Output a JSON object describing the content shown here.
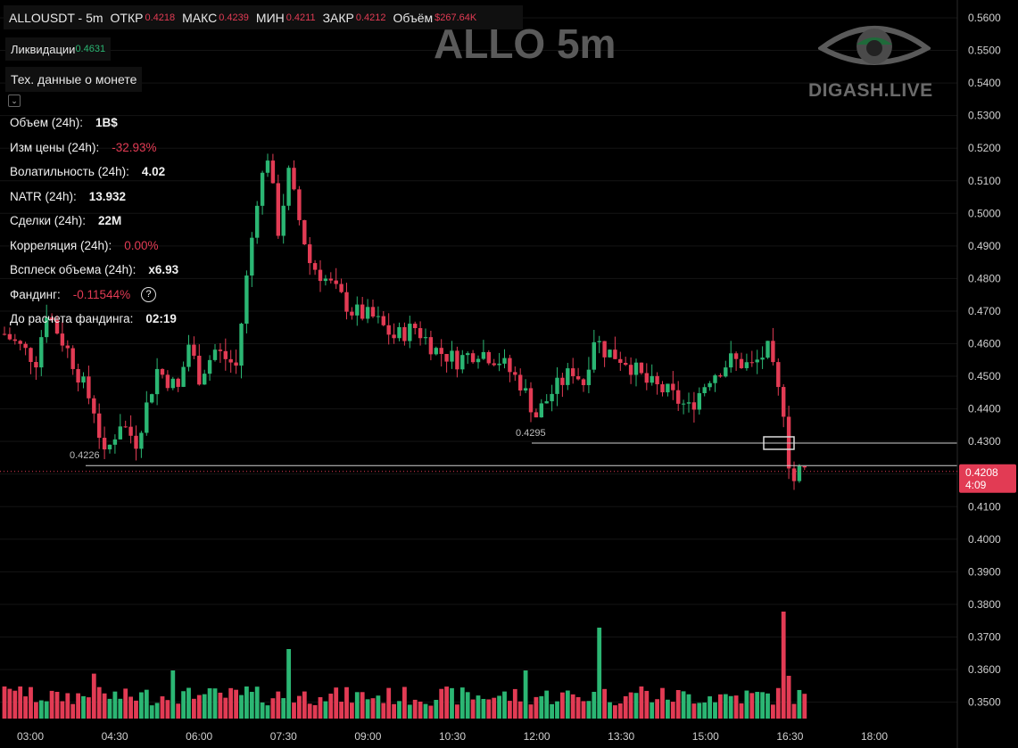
{
  "header": {
    "symbol": "ALLOUSDT - 5m",
    "open_label": "ОТКР",
    "open": "0.4218",
    "high_label": "МАКС",
    "high": "0.4239",
    "low_label": "МИН",
    "low": "0.4211",
    "close_label": "ЗАКР",
    "close": "0.4212",
    "volume_label": "Объём",
    "volume": "$267.64K"
  },
  "liquidations": {
    "label": "Ликвидации",
    "value": "0.4631"
  },
  "coin_data_button": "Тех. данные о монете",
  "stats": [
    {
      "label": "Объем (24h):",
      "value": "1B$",
      "color": "#f0f0f0"
    },
    {
      "label": "Изм цены  (24h):",
      "value": "-32.93%",
      "color": "#e23b54"
    },
    {
      "label": "Волатильность  (24h):",
      "value": "4.02",
      "color": "#f0f0f0"
    },
    {
      "label": "NATR (24h):",
      "value": "13.932",
      "color": "#f0f0f0"
    },
    {
      "label": "Сделки (24h):",
      "value": "22M",
      "color": "#f0f0f0"
    },
    {
      "label": "Корреляция (24h):",
      "value": "0.00%",
      "color": "#e23b54"
    },
    {
      "label": "Всплеск объема (24h):",
      "value": "x6.93",
      "color": "#f0f0f0"
    },
    {
      "label": "Фандинг:",
      "value": "-0.11544%",
      "color": "#e23b54"
    },
    {
      "label": "До расчета фандинга:",
      "value": "02:19",
      "color": "#f0f0f0"
    }
  ],
  "watermark": {
    "title": "ALLO 5m",
    "brand": "DIGASH.LIVE"
  },
  "chart_data": {
    "type": "candlestick",
    "price_axis": [
      "0.5600",
      "0.5500",
      "0.5400",
      "0.5300",
      "0.5200",
      "0.5100",
      "0.5000",
      "0.4900",
      "0.4800",
      "0.4700",
      "0.4600",
      "0.4500",
      "0.4400",
      "0.4300",
      "0.4200",
      "0.4100",
      "0.4000",
      "0.3900",
      "0.3800",
      "0.3700",
      "0.3600",
      "0.3500"
    ],
    "time_axis": [
      "03:00",
      "04:30",
      "06:00",
      "07:30",
      "09:00",
      "10:30",
      "12:00",
      "13:30",
      "15:00",
      "16:30",
      "18:00"
    ],
    "current_price": "0.4208",
    "countdown": "4:09",
    "levels": [
      {
        "label": "0.4226",
        "price": 0.4226
      },
      {
        "label": "0.4295",
        "price": 0.4295
      }
    ],
    "colors": {
      "up": "#2bb673",
      "down": "#e23b54",
      "grid": "#141414",
      "level": "#cfcfcf"
    },
    "price_path": [
      [
        0,
        0.463
      ],
      [
        6,
        0.455
      ],
      [
        8,
        0.47
      ],
      [
        12,
        0.458
      ],
      [
        17,
        0.44
      ],
      [
        19,
        0.425
      ],
      [
        22,
        0.436
      ],
      [
        25,
        0.43
      ],
      [
        29,
        0.452
      ],
      [
        33,
        0.446
      ],
      [
        35,
        0.46
      ],
      [
        37,
        0.45
      ],
      [
        40,
        0.458
      ],
      [
        44,
        0.453
      ],
      [
        46,
        0.48
      ],
      [
        48,
        0.505
      ],
      [
        50,
        0.518
      ],
      [
        52,
        0.495
      ],
      [
        54,
        0.512
      ],
      [
        56,
        0.498
      ],
      [
        58,
        0.485
      ],
      [
        62,
        0.478
      ],
      [
        66,
        0.47
      ],
      [
        70,
        0.468
      ],
      [
        74,
        0.462
      ],
      [
        78,
        0.465
      ],
      [
        82,
        0.458
      ],
      [
        86,
        0.455
      ],
      [
        90,
        0.458
      ],
      [
        94,
        0.455
      ],
      [
        98,
        0.448
      ],
      [
        101,
        0.438
      ],
      [
        104,
        0.445
      ],
      [
        108,
        0.452
      ],
      [
        110,
        0.448
      ],
      [
        112,
        0.462
      ],
      [
        114,
        0.458
      ],
      [
        118,
        0.455
      ],
      [
        122,
        0.448
      ],
      [
        126,
        0.445
      ],
      [
        130,
        0.44
      ],
      [
        134,
        0.45
      ],
      [
        138,
        0.455
      ],
      [
        142,
        0.453
      ],
      [
        145,
        0.458
      ],
      [
        147,
        0.445
      ],
      [
        148,
        0.44
      ],
      [
        149,
        0.424
      ],
      [
        150,
        0.418
      ],
      [
        151,
        0.421
      ],
      [
        152,
        0.421
      ]
    ],
    "volume_spikes": [
      [
        0,
        0.3
      ],
      [
        3,
        0.3
      ],
      [
        10,
        0.25
      ],
      [
        17,
        0.42
      ],
      [
        23,
        0.28
      ],
      [
        32,
        0.45
      ],
      [
        37,
        0.22
      ],
      [
        46,
        0.3
      ],
      [
        54,
        0.65
      ],
      [
        60,
        0.2
      ],
      [
        99,
        0.45
      ],
      [
        113,
        0.85
      ],
      [
        121,
        0.3
      ],
      [
        148,
        1.0
      ],
      [
        149,
        0.4
      ]
    ]
  }
}
